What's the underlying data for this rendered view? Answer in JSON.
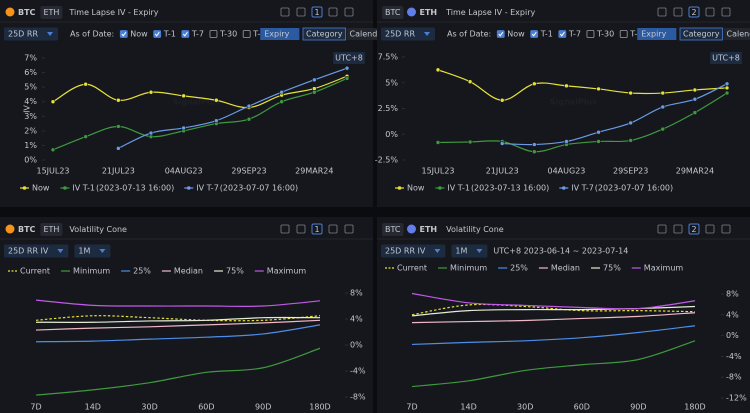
{
  "panels": [
    {
      "tabs": [
        "BTC",
        "ETH"
      ],
      "active_tab": 0,
      "title": "Time Lapse IV - Expiry",
      "badge": "1",
      "dropdowns": [
        "25D RR"
      ],
      "as_of_label": "As of Date:",
      "checkboxes": [
        {
          "label": "Now",
          "checked": true
        },
        {
          "label": "T-1",
          "checked": true
        },
        {
          "label": "T-7",
          "checked": true
        },
        {
          "label": "T-30",
          "checked": false
        },
        {
          "label": "T-",
          "checked": false
        }
      ],
      "input_placeholder": "Expiry",
      "view_buttons": [
        "Category",
        "Calendar"
      ],
      "active_view": 0,
      "timezone": "UTC+8",
      "watermark": "SignalPlus"
    },
    {
      "tabs": [
        "BTC",
        "ETH"
      ],
      "active_tab": 1,
      "title": "Time Lapse IV - Expiry",
      "badge": "2",
      "dropdowns": [
        "25D RR"
      ],
      "as_of_label": "As of Date:",
      "checkboxes": [
        {
          "label": "Now",
          "checked": true
        },
        {
          "label": "T-1",
          "checked": true
        },
        {
          "label": "T-7",
          "checked": true
        },
        {
          "label": "T-30",
          "checked": false
        },
        {
          "label": "T-",
          "checked": false
        }
      ],
      "input_placeholder": "Expiry",
      "view_buttons": [
        "Category",
        "Calendar"
      ],
      "active_view": 0,
      "timezone": "UTC+8",
      "watermark": "SignalPlus"
    },
    {
      "tabs": [
        "BTC",
        "ETH"
      ],
      "active_tab": 0,
      "title": "Volatility Cone",
      "badge": "1",
      "dropdowns": [
        "25D RR IV",
        "1M"
      ]
    },
    {
      "tabs": [
        "BTC",
        "ETH"
      ],
      "active_tab": 1,
      "title": "Volatility Cone",
      "badge": "2",
      "dropdowns": [
        "25D RR IV",
        "1M"
      ],
      "date_range": "UTC+8 2023-06-14 ~ 2023-07-14"
    }
  ],
  "chart_data": [
    {
      "type": "line",
      "ylabel": "IV",
      "categories": [
        "15JUL23",
        null,
        "21JUL23",
        null,
        "04AUG23",
        null,
        "29SEP23",
        null,
        "29MAR24",
        null
      ],
      "series": [
        {
          "name": "Now",
          "color": "#e6e13a",
          "markers": true,
          "values": [
            4.0,
            5.2,
            4.1,
            4.65,
            4.4,
            4.1,
            3.6,
            4.45,
            4.9,
            5.75
          ]
        },
        {
          "name": "IV T-1",
          "date_label": "(2023-07-13 16:00)",
          "color": "#3f9a3f",
          "markers": true,
          "values": [
            0.7,
            1.6,
            2.3,
            1.6,
            2.0,
            2.5,
            2.8,
            4.0,
            4.65,
            5.6
          ]
        },
        {
          "name": "IV T-7",
          "date_label": "(2023-07-07 16:00)",
          "color": "#6b9be8",
          "markers": true,
          "values": [
            null,
            null,
            0.8,
            1.85,
            2.2,
            2.7,
            3.7,
            4.65,
            5.5,
            6.3
          ]
        }
      ],
      "ylim": [
        0,
        7
      ],
      "yticks": [
        {
          "value": 0,
          "label": "0%"
        },
        {
          "value": 1,
          "label": "1%"
        },
        {
          "value": 2,
          "label": "2%"
        },
        {
          "value": 3,
          "label": "3%"
        },
        {
          "value": 4,
          "label": "4%"
        },
        {
          "value": 5,
          "label": "5%"
        },
        {
          "value": 6,
          "label": "6%"
        },
        {
          "value": 7,
          "label": "7%"
        }
      ]
    },
    {
      "type": "line",
      "categories": [
        "15JUL23",
        null,
        "21JUL23",
        null,
        "04AUG23",
        null,
        "29SEP23",
        null,
        "29MAR24",
        null
      ],
      "series": [
        {
          "name": "Now",
          "color": "#e6e13a",
          "markers": true,
          "values": [
            6.25,
            5.1,
            3.3,
            4.9,
            4.7,
            4.4,
            4.0,
            4.0,
            4.3,
            4.5
          ]
        },
        {
          "name": "IV T-1",
          "date_label": "(2023-07-13 16:00)",
          "color": "#3f9a3f",
          "markers": true,
          "values": [
            -0.8,
            -0.75,
            -0.7,
            -1.7,
            -1.0,
            -0.7,
            -0.6,
            0.5,
            2.1,
            4.0
          ]
        },
        {
          "name": "IV T-7",
          "date_label": "(2023-07-07 16:00)",
          "color": "#6b9be8",
          "markers": true,
          "values": [
            null,
            null,
            -0.9,
            -1.0,
            -0.7,
            0.2,
            1.1,
            2.65,
            3.4,
            4.9
          ]
        }
      ],
      "ylim": [
        -2.5,
        7.5
      ],
      "yticks": [
        {
          "value": -2.5,
          "label": "-2.5%"
        },
        {
          "value": 0,
          "label": "0%"
        },
        {
          "value": 2.5,
          "label": "2.5%"
        },
        {
          "value": 5,
          "label": "5%"
        },
        {
          "value": 7.5,
          "label": "7.5%"
        }
      ]
    },
    {
      "type": "line",
      "legend_text_colored": true,
      "categories": [
        "7D",
        "14D",
        "30D",
        "60D",
        "90D",
        "180D"
      ],
      "series": [
        {
          "name": "Current",
          "color": "#e6e13a",
          "dashed": true,
          "values": [
            3.8,
            4.5,
            4.2,
            3.8,
            3.8,
            4.5
          ]
        },
        {
          "name": "Minimum",
          "color": "#3f9a3f",
          "values": [
            -7.7,
            -6.9,
            -5.8,
            -4.2,
            -3.5,
            -0.5
          ]
        },
        {
          "name": "25%",
          "color": "#4d8ee8",
          "values": [
            0.5,
            0.6,
            0.9,
            1.2,
            1.7,
            3.1
          ]
        },
        {
          "name": "Median",
          "color": "#f0b8c8",
          "values": [
            2.3,
            2.6,
            2.8,
            3.1,
            3.4,
            3.8
          ]
        },
        {
          "name": "75%",
          "color": "#e4ecd4",
          "values": [
            3.5,
            3.5,
            3.7,
            3.8,
            4.2,
            4.2
          ]
        },
        {
          "name": "Maximum",
          "color": "#c05ae8",
          "values": [
            6.9,
            6.1,
            6.0,
            6.0,
            6.0,
            6.8
          ]
        }
      ],
      "ylim": [
        -8,
        8
      ],
      "yticks": [
        {
          "value": -8,
          "label": "-8%"
        },
        {
          "value": -4,
          "label": "-4%"
        },
        {
          "value": 0,
          "label": "0%"
        },
        {
          "value": 4,
          "label": "4%"
        },
        {
          "value": 8,
          "label": "8%"
        }
      ]
    },
    {
      "type": "line",
      "legend_text_colored": true,
      "categories": [
        "7D",
        "14D",
        "30D",
        "60D",
        "90D",
        "180D"
      ],
      "series": [
        {
          "name": "Current",
          "color": "#e6e13a",
          "dashed": true,
          "values": [
            4.0,
            5.9,
            5.6,
            4.8,
            4.8,
            4.6
          ]
        },
        {
          "name": "Minimum",
          "color": "#3f9a3f",
          "values": [
            -9.8,
            -8.7,
            -6.7,
            -5.6,
            -4.6,
            -1.0
          ]
        },
        {
          "name": "25%",
          "color": "#4d8ee8",
          "values": [
            -1.7,
            -1.3,
            -1.0,
            -0.4,
            0.6,
            1.9
          ]
        },
        {
          "name": "Median",
          "color": "#f0b8c8",
          "values": [
            2.5,
            2.7,
            2.9,
            3.3,
            3.7,
            4.4
          ]
        },
        {
          "name": "75%",
          "color": "#e4ecd4",
          "values": [
            3.8,
            4.8,
            5.0,
            5.0,
            5.2,
            5.6
          ]
        },
        {
          "name": "Maximum",
          "color": "#c05ae8",
          "values": [
            8.1,
            6.3,
            5.8,
            5.4,
            5.2,
            6.7
          ]
        }
      ],
      "ylim": [
        -12,
        8
      ],
      "yticks": [
        {
          "value": -12,
          "label": "-12%"
        },
        {
          "value": -8,
          "label": "-8%"
        },
        {
          "value": -4,
          "label": "-4%"
        },
        {
          "value": 0,
          "label": "0%"
        },
        {
          "value": 4,
          "label": "4%"
        },
        {
          "value": 8,
          "label": "8%"
        }
      ]
    }
  ]
}
